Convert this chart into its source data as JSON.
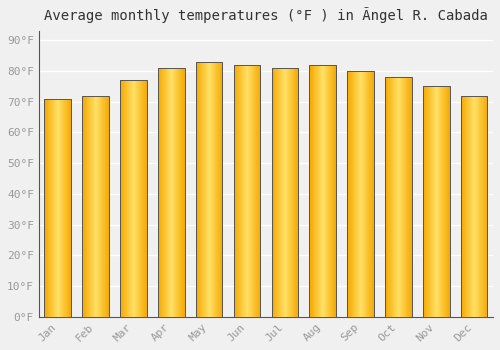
{
  "title": "Average monthly temperatures (°F ) in Ãngel R. Cabada",
  "months": [
    "Jan",
    "Feb",
    "Mar",
    "Apr",
    "May",
    "Jun",
    "Jul",
    "Aug",
    "Sep",
    "Oct",
    "Nov",
    "Dec"
  ],
  "values": [
    71,
    72,
    77,
    81,
    83,
    82,
    81,
    82,
    80,
    78,
    75,
    72
  ],
  "bar_color_center": "#FFE066",
  "bar_color_edge": "#F5A800",
  "bar_outline_color": "#CC8800",
  "background_color": "#F0F0F0",
  "grid_color": "#FFFFFF",
  "yticks": [
    0,
    10,
    20,
    30,
    40,
    50,
    60,
    70,
    80,
    90
  ],
  "ylim": [
    0,
    93
  ],
  "title_fontsize": 10,
  "tick_fontsize": 8,
  "tick_color": "#999999",
  "outline_color": "#555555",
  "font_family": "monospace"
}
